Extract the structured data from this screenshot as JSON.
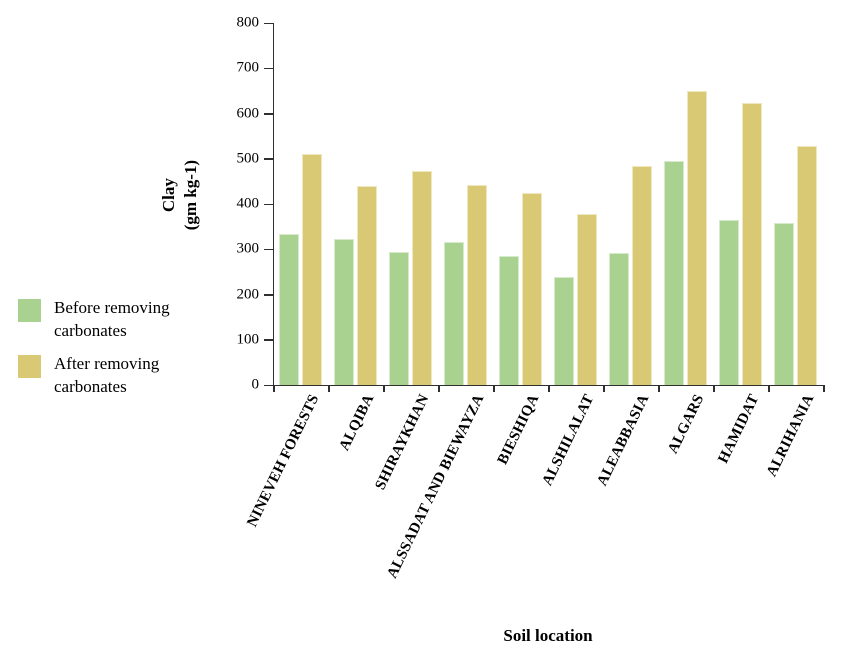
{
  "chart_data": {
    "type": "bar",
    "title": "",
    "xlabel": "Soil location",
    "ylabel": "Clay (gm kg-1)",
    "ylabel_lines": [
      "Clay",
      "(gm kg-1)"
    ],
    "ylim": [
      0,
      800
    ],
    "yticks": [
      0,
      100,
      200,
      300,
      400,
      500,
      600,
      700,
      800
    ],
    "grid": false,
    "legend_position": "left-middle",
    "categories": [
      "NINEVEH FORESTS",
      "ALQIBA",
      "SHIRAYKHAN",
      "ALSSADAT AND BIEWAYZA",
      "BIESHIQA",
      "ALSHILALAT",
      "ALEABBASIA",
      "ALGARS",
      "HAMIDAT",
      "ALRIHANIA"
    ],
    "series": [
      {
        "name": "Before removing carbonates",
        "color": "#a9d18f",
        "values": [
          334,
          322,
          295,
          315,
          285,
          238,
          292,
          495,
          365,
          357
        ]
      },
      {
        "name": "After removing carbonates",
        "color": "#d9c974",
        "values": [
          511,
          440,
          472,
          443,
          425,
          378,
          483,
          650,
          624,
          528
        ]
      }
    ]
  }
}
